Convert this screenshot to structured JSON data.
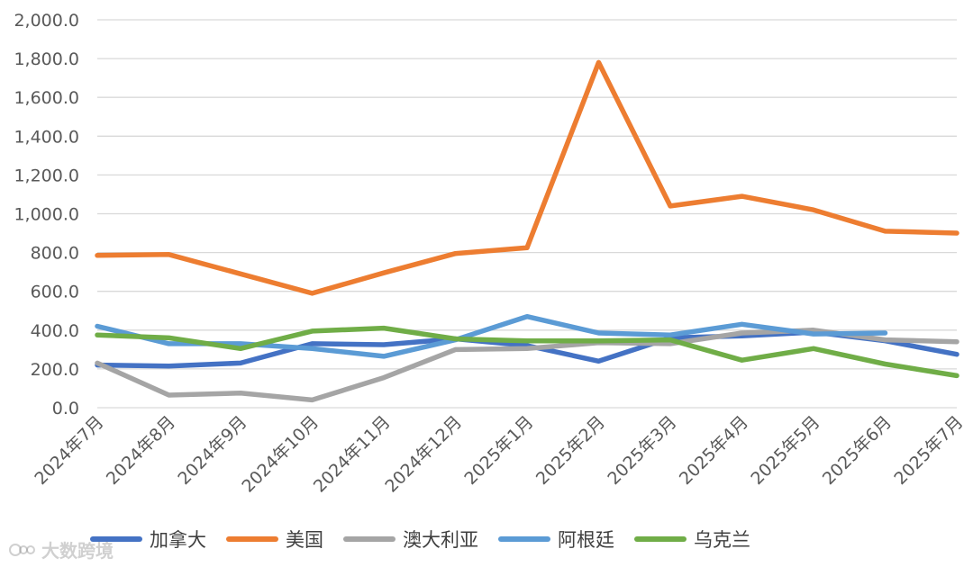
{
  "chart_data": {
    "type": "line",
    "categories": [
      "2024年7月",
      "2024年8月",
      "2024年9月",
      "2024年10月",
      "2024年11月",
      "2024年12月",
      "2025年1月",
      "2025年2月",
      "2025年3月",
      "2025年4月",
      "2025年5月",
      "2025年6月",
      "2025年7月"
    ],
    "yticks": [
      "0.0",
      "200.0",
      "400.0",
      "600.0",
      "800.0",
      "1,000.0",
      "1,200.0",
      "1,400.0",
      "1,600.0",
      "1,800.0",
      "2,000.0"
    ],
    "ylim": [
      0,
      2000
    ],
    "grid": true,
    "legend_position": "bottom",
    "series": [
      {
        "name": "加拿大",
        "color": "#4472C4",
        "values": [
          220,
          215,
          230,
          330,
          325,
          355,
          320,
          240,
          360,
          370,
          390,
          345,
          275
        ]
      },
      {
        "name": "美国",
        "color": "#ED7D31",
        "values": [
          785,
          790,
          690,
          590,
          695,
          795,
          825,
          1780,
          1040,
          1090,
          1020,
          910,
          900
        ]
      },
      {
        "name": "澳大利亚",
        "color": "#A5A5A5",
        "values": [
          230,
          65,
          75,
          40,
          155,
          300,
          305,
          335,
          330,
          385,
          400,
          350,
          340
        ]
      },
      {
        "name": "阿根廷",
        "color": "#5B9BD5",
        "values": [
          420,
          330,
          330,
          305,
          265,
          350,
          470,
          385,
          375,
          430,
          380,
          385,
          null
        ]
      },
      {
        "name": "乌克兰",
        "color": "#70AD47",
        "values": [
          375,
          360,
          305,
          395,
          410,
          355,
          345,
          345,
          350,
          245,
          305,
          225,
          165
        ]
      }
    ]
  },
  "watermark": {
    "text": "大数跨境"
  }
}
